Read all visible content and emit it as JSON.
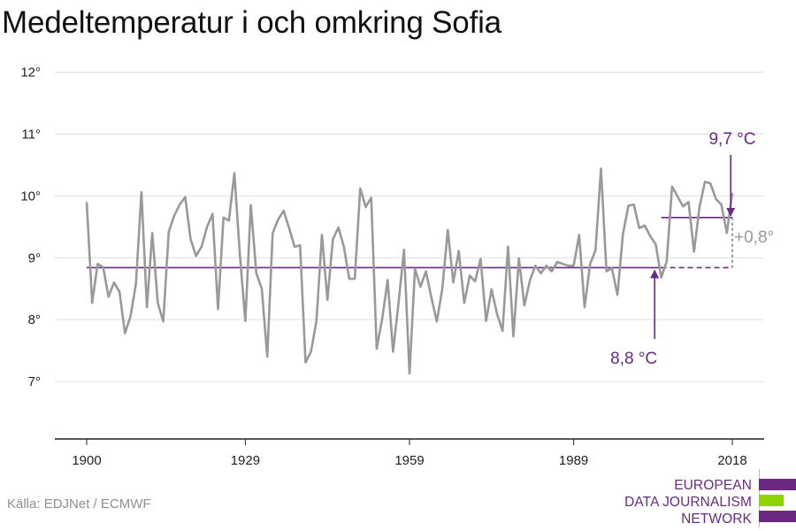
{
  "title": "Medeltemperatur i och omkring Sofia",
  "source": "Källa: EDJNet / ECMWF",
  "logo": {
    "lines": [
      "EUROPEAN",
      "DATA JOURNALISM",
      "NETWORK"
    ],
    "colors": {
      "purple": "#6a2a84",
      "green": "#8fd400"
    }
  },
  "colors": {
    "series": "#999999",
    "baseline": "#6a2a84",
    "grid": "#dddddd",
    "axis": "#222222",
    "delta": "#999999"
  },
  "chart_data": {
    "type": "line",
    "title": "Medeltemperatur i och omkring Sofia",
    "xlabel": "",
    "ylabel": "",
    "xlim": [
      1900,
      2018
    ],
    "ylim": [
      6,
      12
    ],
    "x_ticks": [
      1900,
      1929,
      1959,
      1989,
      2018
    ],
    "y_ticks": [
      7,
      8,
      9,
      10,
      11,
      12
    ],
    "y_tick_labels": [
      "7°",
      "8°",
      "9°",
      "10°",
      "11°",
      "12°"
    ],
    "grid": true,
    "series": [
      {
        "x": [
          1900,
          1901,
          1902,
          1903,
          1904,
          1905,
          1906,
          1907,
          1908,
          1909,
          1910,
          1911,
          1912,
          1913,
          1914,
          1915,
          1916,
          1917,
          1918,
          1919,
          1920,
          1921,
          1922,
          1923,
          1924,
          1925,
          1926,
          1927,
          1928,
          1929,
          1930,
          1931,
          1932,
          1933,
          1934,
          1935,
          1936,
          1937,
          1938,
          1939,
          1940,
          1941,
          1942,
          1943,
          1944,
          1945,
          1946,
          1947,
          1948,
          1949,
          1950,
          1951,
          1952,
          1953,
          1954,
          1955,
          1956,
          1957,
          1958,
          1959,
          1960,
          1961,
          1962,
          1963,
          1964,
          1965,
          1966,
          1967,
          1968,
          1969,
          1970,
          1971,
          1972,
          1973,
          1974,
          1975,
          1976,
          1977,
          1978,
          1979,
          1980,
          1981,
          1982,
          1983,
          1984,
          1985,
          1986,
          1987,
          1988,
          1989,
          1990,
          1991,
          1992,
          1993,
          1994,
          1995,
          1996,
          1997,
          1998,
          1999,
          2000,
          2001,
          2002,
          2003,
          2004,
          2005,
          2006,
          2007,
          2008,
          2009,
          2010,
          2011,
          2012,
          2013,
          2014,
          2015,
          2016,
          2017,
          2018
        ],
        "values": [
          9.9,
          8.27,
          8.9,
          8.85,
          8.37,
          8.6,
          8.45,
          7.78,
          8.05,
          8.58,
          10.06,
          8.2,
          9.4,
          8.27,
          7.97,
          9.42,
          9.68,
          9.86,
          9.98,
          9.3,
          9.03,
          9.18,
          9.5,
          9.71,
          8.17,
          9.65,
          9.6,
          10.37,
          9.05,
          7.98,
          9.85,
          8.75,
          8.5,
          7.4,
          9.4,
          9.62,
          9.76,
          9.48,
          9.18,
          9.2,
          7.31,
          7.48,
          7.98,
          9.37,
          8.32,
          9.3,
          9.49,
          9.18,
          8.66,
          8.66,
          10.12,
          9.82,
          9.97,
          7.53,
          8.01,
          8.64,
          7.48,
          8.27,
          9.13,
          7.13,
          8.82,
          8.53,
          8.78,
          8.36,
          7.97,
          8.5,
          9.45,
          8.6,
          9.11,
          8.27,
          8.71,
          8.62,
          8.98,
          7.98,
          8.49,
          8.09,
          7.82,
          9.18,
          7.73,
          8.99,
          8.23,
          8.63,
          8.87,
          8.75,
          8.87,
          8.78,
          8.93,
          8.9,
          8.87,
          8.87,
          9.37,
          8.2,
          8.9,
          9.12,
          10.44,
          8.78,
          8.83,
          8.4,
          9.38,
          9.84,
          9.86,
          9.48,
          9.52,
          9.35,
          9.22,
          8.68,
          8.94,
          10.15,
          9.99,
          9.83,
          9.9,
          9.1,
          9.82,
          10.23,
          10.2,
          9.95,
          9.86,
          9.4,
          10.05
        ]
      }
    ],
    "reference_lines": [
      {
        "label": "8,8 °C",
        "value": 8.84,
        "from": 1900,
        "to": 2018
      },
      {
        "label": "9,7 °C",
        "value": 9.65,
        "from": 2018,
        "to": 2018
      }
    ],
    "annotations": [
      {
        "text": "9,7 °C",
        "x": 2018,
        "y": 9.65,
        "color": "#6a2a84"
      },
      {
        "text": "8,8 °C",
        "x": 2000,
        "y": 8.84,
        "color": "#6a2a84"
      },
      {
        "text": "+0,8°",
        "x": 2018,
        "y": 9.25,
        "color": "#999999"
      }
    ]
  }
}
